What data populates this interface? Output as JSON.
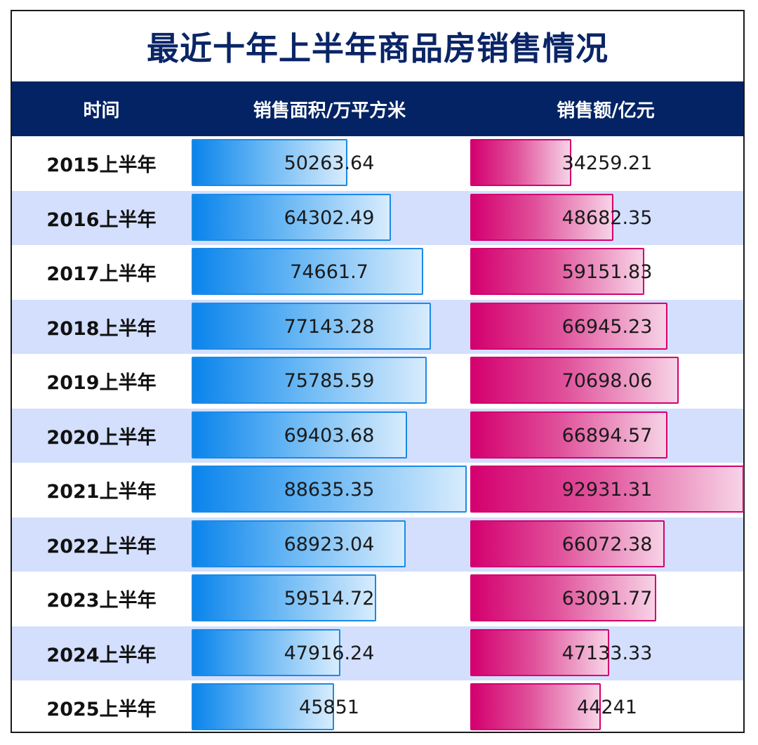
{
  "chart_data": {
    "type": "table",
    "title": "最近十年上半年商品房销售情况",
    "columns": [
      "时间",
      "销售面积/万平方米",
      "销售额/亿元"
    ],
    "categories": [
      "2015上半年",
      "2016上半年",
      "2017上半年",
      "2018上半年",
      "2019上半年",
      "2020上半年",
      "2021上半年",
      "2022上半年",
      "2023上半年",
      "2024上半年",
      "2025上半年"
    ],
    "series": [
      {
        "name": "销售面积/万平方米",
        "values": [
          50263.64,
          64302.49,
          74661.7,
          77143.28,
          75785.59,
          69403.68,
          88635.35,
          68923.04,
          59514.72,
          47916.24,
          45851
        ]
      },
      {
        "name": "销售额/亿元",
        "values": [
          34259.21,
          48682.35,
          59151.83,
          66945.23,
          70698.06,
          66894.57,
          92931.31,
          66072.38,
          63091.77,
          47133.33,
          44241
        ]
      }
    ],
    "labels": {
      "area": [
        "50263.64",
        "64302.49",
        "74661.7",
        "77143.28",
        "75785.59",
        "69403.68",
        "88635.35",
        "68923.04",
        "59514.72",
        "47916.24",
        "45851"
      ],
      "sales": [
        "34259.21",
        "48682.35",
        "59151.83",
        "66945.23",
        "70698.06",
        "66894.57",
        "92931.31",
        "66072.38",
        "63091.77",
        "47133.33",
        "44241"
      ]
    },
    "colors": {
      "area": "#0a84ec",
      "sales": "#d4006f",
      "header": "#032364",
      "stripe": "#d3dffd",
      "title": "#0a2566"
    }
  }
}
